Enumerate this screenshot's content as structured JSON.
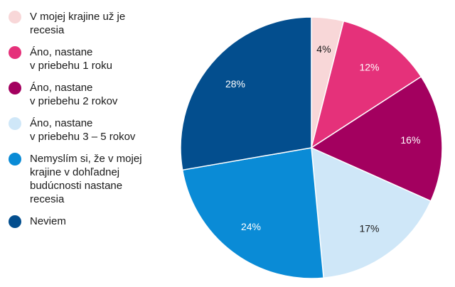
{
  "chart_data": {
    "type": "pie",
    "title": "",
    "start": "top",
    "direction": "clockwise",
    "legend_position": "left",
    "slices": [
      {
        "label": "V mojej krajine už je\nrecesia",
        "value": 4,
        "value_label": "4%",
        "color": "#f8d7d8",
        "text_color": "#1a1a1a"
      },
      {
        "label": "Áno, nastane\nv priebehu 1 roku",
        "value": 12,
        "value_label": "12%",
        "color": "#e5317a",
        "text_color": "#ffffff"
      },
      {
        "label": "Áno, nastane\nv priebehu 2 rokov",
        "value": 16,
        "value_label": "16%",
        "color": "#a3005f",
        "text_color": "#ffffff"
      },
      {
        "label": "Áno, nastane\nv priebehu 3 – 5 rokov",
        "value": 17,
        "value_label": "17%",
        "color": "#cfe7f8",
        "text_color": "#1a1a1a"
      },
      {
        "label": "Nemyslím si, že v mojej\nkrajine v dohľadnej\nbudúcnosti nastane\nrecesia",
        "value": 24,
        "value_label": "24%",
        "color": "#0a8bd6",
        "text_color": "#ffffff"
      },
      {
        "label": "Neviem",
        "value": 28,
        "value_label": "28%",
        "color": "#034e8e",
        "text_color": "#ffffff"
      }
    ]
  }
}
